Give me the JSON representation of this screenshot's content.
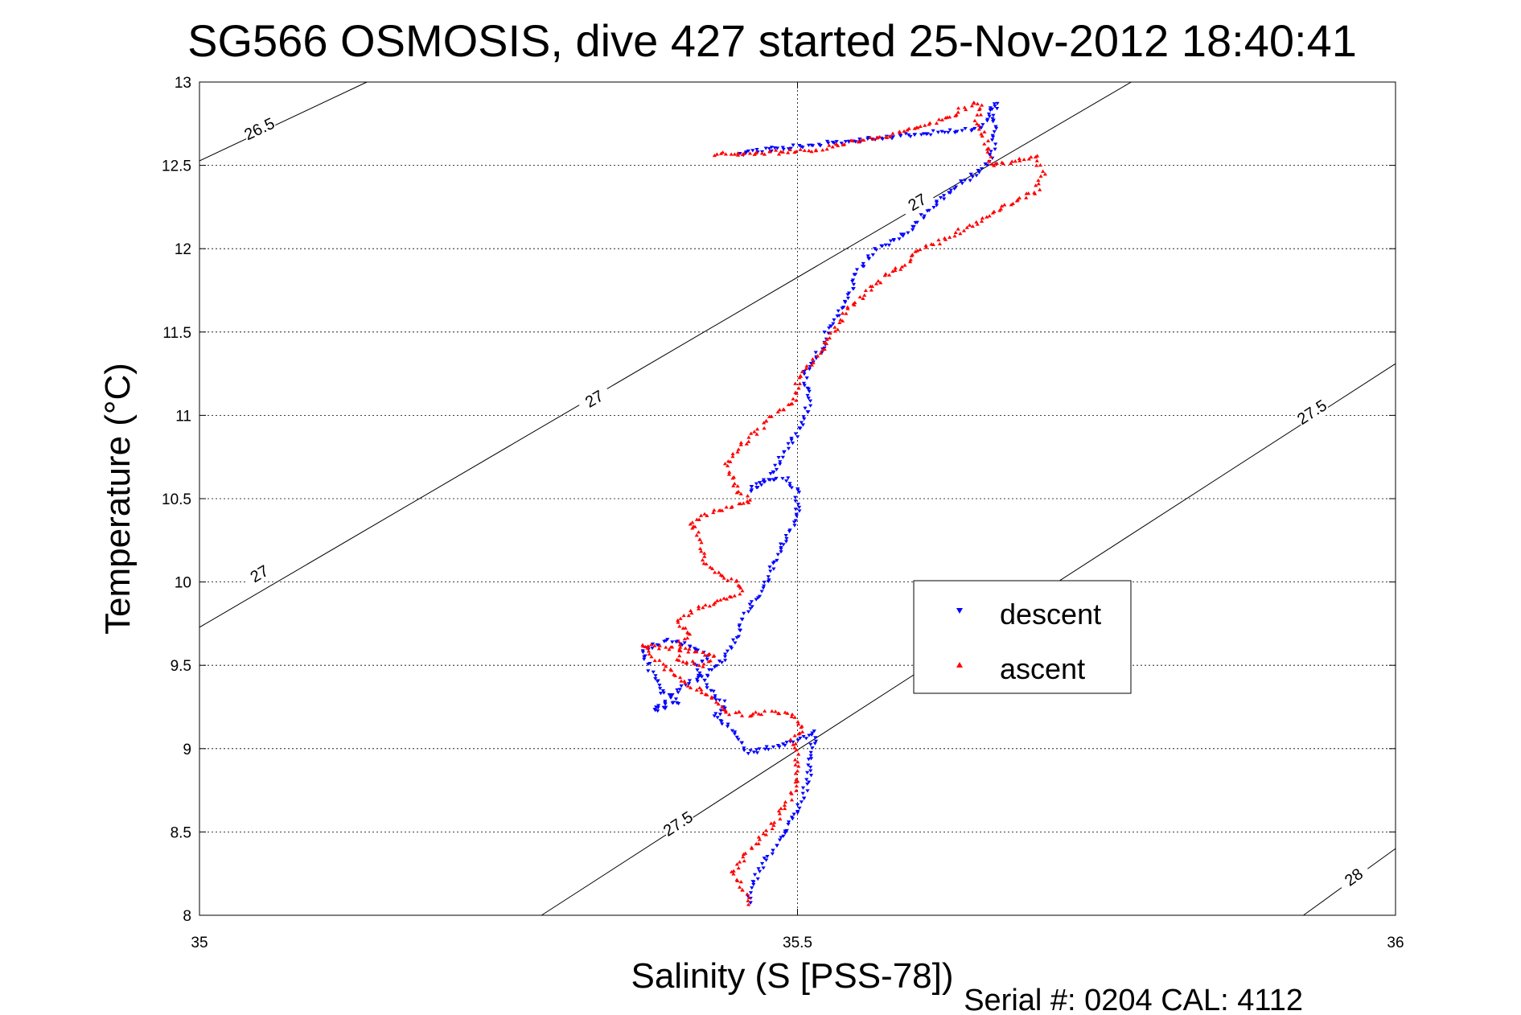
{
  "chart_data": {
    "type": "scatter",
    "title": "SG566 OSMOSIS, dive 427 started 25-Nov-2012 18:40:41",
    "xlabel": "Salinity (S [PSS-78])",
    "ylabel": "Temperature (°C)",
    "footer": "Serial #: 0204  CAL: 4112",
    "xlim": [
      35,
      36
    ],
    "ylim": [
      8,
      13
    ],
    "xticks": [
      35,
      35.5,
      36
    ],
    "xtick_labels": [
      "35",
      "35.5",
      "36"
    ],
    "yticks": [
      8,
      8.5,
      9,
      9.5,
      10,
      10.5,
      11,
      11.5,
      12,
      12.5,
      13
    ],
    "ytick_labels": [
      "8",
      "8.5",
      "9",
      "9.5",
      "10",
      "10.5",
      "11",
      "11.5",
      "12",
      "12.5",
      "13"
    ],
    "grid": true,
    "legend_position": "center-right",
    "density_contours": [
      {
        "sigma": 26.5,
        "label": "26.5",
        "line": [
          [
            35.0,
            12.527
          ],
          [
            35.14,
            13.0
          ]
        ],
        "label_at": [
          35.05,
          12.72
        ]
      },
      {
        "sigma": 27.0,
        "label": "27",
        "line": [
          [
            35.0,
            9.728
          ],
          [
            35.779,
            13.0
          ]
        ],
        "label_pos": [
          [
            35.05,
            10.05
          ],
          [
            35.33,
            11.1
          ],
          [
            35.6,
            12.28
          ]
        ]
      },
      {
        "sigma": 27.5,
        "label": "27.5",
        "line": [
          [
            35.286,
            8.0
          ],
          [
            36.0,
            11.31
          ]
        ],
        "label_pos": [
          [
            35.4,
            8.55
          ],
          [
            35.93,
            11.02
          ]
        ]
      },
      {
        "sigma": 28.0,
        "label": "28",
        "line": [
          [
            35.923,
            8.0
          ],
          [
            36.0,
            8.4
          ]
        ],
        "label_at": [
          35.965,
          8.23
        ]
      }
    ],
    "series": [
      {
        "name": "descent",
        "color": "#0000ff",
        "marker": "triangle-down",
        "path": [
          [
            35.46,
            8.07
          ],
          [
            35.46,
            8.15
          ],
          [
            35.47,
            8.3
          ],
          [
            35.49,
            8.5
          ],
          [
            35.505,
            8.7
          ],
          [
            35.51,
            8.87
          ],
          [
            35.515,
            9.1
          ],
          [
            35.5,
            9.05
          ],
          [
            35.46,
            8.97
          ],
          [
            35.45,
            9.08
          ],
          [
            35.43,
            9.2
          ],
          [
            35.44,
            9.25
          ],
          [
            35.43,
            9.33
          ],
          [
            35.42,
            9.42
          ],
          [
            35.415,
            9.5
          ],
          [
            35.425,
            9.55
          ],
          [
            35.41,
            9.62
          ],
          [
            35.39,
            9.65
          ],
          [
            35.37,
            9.59
          ],
          [
            35.385,
            9.35
          ],
          [
            35.4,
            9.28
          ],
          [
            35.38,
            9.22
          ],
          [
            35.39,
            9.28
          ],
          [
            35.4,
            9.35
          ],
          [
            35.425,
            9.45
          ],
          [
            35.44,
            9.55
          ],
          [
            35.45,
            9.7
          ],
          [
            35.46,
            9.85
          ],
          [
            35.47,
            9.95
          ],
          [
            35.48,
            10.1
          ],
          [
            35.49,
            10.25
          ],
          [
            35.5,
            10.4
          ],
          [
            35.5,
            10.55
          ],
          [
            35.49,
            10.62
          ],
          [
            35.47,
            10.6
          ],
          [
            35.46,
            10.55
          ],
          [
            35.47,
            10.6
          ],
          [
            35.48,
            10.67
          ],
          [
            35.49,
            10.8
          ],
          [
            35.505,
            10.95
          ],
          [
            35.51,
            11.1
          ],
          [
            35.505,
            11.2
          ],
          [
            35.51,
            11.3
          ],
          [
            35.52,
            11.4
          ],
          [
            35.525,
            11.5
          ],
          [
            35.535,
            11.6
          ],
          [
            35.545,
            11.75
          ],
          [
            35.55,
            11.85
          ],
          [
            35.56,
            11.95
          ],
          [
            35.57,
            12.02
          ],
          [
            35.585,
            12.05
          ],
          [
            35.6,
            12.15
          ],
          [
            35.61,
            12.23
          ],
          [
            35.625,
            12.33
          ],
          [
            35.645,
            12.43
          ],
          [
            35.66,
            12.52
          ],
          [
            35.665,
            12.62
          ],
          [
            35.665,
            12.75
          ],
          [
            35.665,
            12.82
          ],
          [
            35.665,
            12.88
          ],
          [
            35.66,
            12.85
          ],
          [
            35.66,
            12.78
          ],
          [
            35.65,
            12.72
          ],
          [
            35.62,
            12.7
          ],
          [
            35.59,
            12.68
          ],
          [
            35.55,
            12.65
          ],
          [
            35.51,
            12.62
          ],
          [
            35.48,
            12.6
          ],
          [
            35.45,
            12.57
          ]
        ],
        "count": 540
      },
      {
        "name": "ascent",
        "color": "#ff0000",
        "marker": "triangle-up",
        "path": [
          [
            35.46,
            8.07
          ],
          [
            35.455,
            8.15
          ],
          [
            35.445,
            8.25
          ],
          [
            35.45,
            8.3
          ],
          [
            35.46,
            8.4
          ],
          [
            35.475,
            8.5
          ],
          [
            35.49,
            8.65
          ],
          [
            35.5,
            8.8
          ],
          [
            35.5,
            8.95
          ],
          [
            35.495,
            9.05
          ],
          [
            35.505,
            9.13
          ],
          [
            35.495,
            9.2
          ],
          [
            35.48,
            9.22
          ],
          [
            35.46,
            9.2
          ],
          [
            35.44,
            9.22
          ],
          [
            35.43,
            9.3
          ],
          [
            35.41,
            9.38
          ],
          [
            35.395,
            9.45
          ],
          [
            35.38,
            9.55
          ],
          [
            35.37,
            9.62
          ],
          [
            35.4,
            9.6
          ],
          [
            35.43,
            9.55
          ],
          [
            35.42,
            9.5
          ],
          [
            35.4,
            9.53
          ],
          [
            35.4,
            9.62
          ],
          [
            35.41,
            9.7
          ],
          [
            35.4,
            9.75
          ],
          [
            35.41,
            9.82
          ],
          [
            35.43,
            9.88
          ],
          [
            35.44,
            9.9
          ],
          [
            35.455,
            9.95
          ],
          [
            35.45,
            10.0
          ],
          [
            35.43,
            10.05
          ],
          [
            35.42,
            10.15
          ],
          [
            35.42,
            10.25
          ],
          [
            35.41,
            10.35
          ],
          [
            35.43,
            10.42
          ],
          [
            35.46,
            10.48
          ],
          [
            35.45,
            10.55
          ],
          [
            35.44,
            10.7
          ],
          [
            35.45,
            10.8
          ],
          [
            35.465,
            10.9
          ],
          [
            35.48,
            11.0
          ],
          [
            35.5,
            11.1
          ],
          [
            35.5,
            11.2
          ],
          [
            35.51,
            11.3
          ],
          [
            35.52,
            11.4
          ],
          [
            35.53,
            11.5
          ],
          [
            35.54,
            11.62
          ],
          [
            35.555,
            11.72
          ],
          [
            35.57,
            11.82
          ],
          [
            35.59,
            11.9
          ],
          [
            35.6,
            11.98
          ],
          [
            35.62,
            12.05
          ],
          [
            35.64,
            12.12
          ],
          [
            35.66,
            12.2
          ],
          [
            35.68,
            12.28
          ],
          [
            35.7,
            12.35
          ],
          [
            35.705,
            12.45
          ],
          [
            35.7,
            12.55
          ],
          [
            35.68,
            12.52
          ],
          [
            35.66,
            12.5
          ],
          [
            35.66,
            12.6
          ],
          [
            35.655,
            12.7
          ],
          [
            35.65,
            12.78
          ],
          [
            35.655,
            12.85
          ],
          [
            35.65,
            12.88
          ],
          [
            35.64,
            12.85
          ],
          [
            35.63,
            12.8
          ],
          [
            35.61,
            12.75
          ],
          [
            35.59,
            12.7
          ],
          [
            35.57,
            12.66
          ],
          [
            35.55,
            12.65
          ],
          [
            35.52,
            12.6
          ],
          [
            35.49,
            12.58
          ],
          [
            35.43,
            12.57
          ]
        ],
        "count": 520
      }
    ]
  }
}
